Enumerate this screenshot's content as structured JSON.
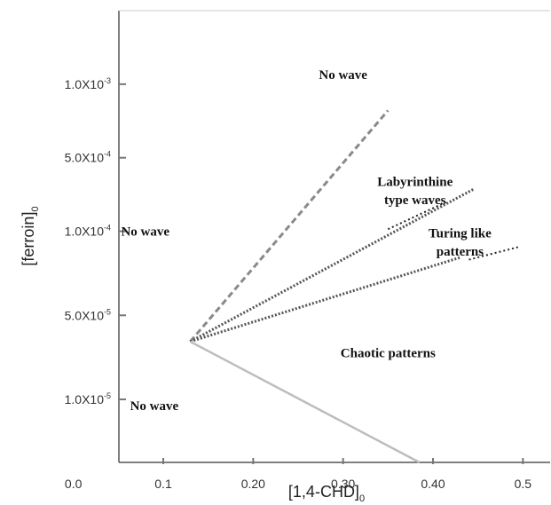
{
  "chart_data": {
    "type": "line",
    "xlabel": {
      "text": "[1,4-CHD]",
      "sub": "0"
    },
    "ylabel": {
      "text": "[ferroin]",
      "sub": "0"
    },
    "xlim": [
      0.0,
      0.52
    ],
    "x_ticks": [
      {
        "value": 0.0,
        "label": "0.0"
      },
      {
        "value": 0.1,
        "label": "0.1"
      },
      {
        "value": 0.2,
        "label": "0.20"
      },
      {
        "value": 0.3,
        "label": "0.30"
      },
      {
        "value": 0.4,
        "label": "0.40"
      },
      {
        "value": 0.5,
        "label": "0.5"
      }
    ],
    "y_ticks": [
      {
        "level": 6.3,
        "label": "1.0X10",
        "exp": "-3"
      },
      {
        "level": 5.6,
        "label": "5.0X10",
        "exp": "-4"
      },
      {
        "level": 4.9,
        "label": "1.0X10",
        "exp": "-4"
      },
      {
        "level": 4.1,
        "label": "5.0X10",
        "exp": "-5"
      },
      {
        "level": 3.3,
        "label": "1.0X10",
        "exp": "-5"
      }
    ],
    "ylim": [
      2.7,
      7.0
    ],
    "series": [
      {
        "style": "dashed",
        "color": "#8a8a8a",
        "points": [
          [
            0.13,
            3.85
          ],
          [
            0.35,
            6.05
          ]
        ]
      },
      {
        "style": "dotted",
        "color": "#555555",
        "points": [
          [
            0.13,
            3.85
          ],
          [
            0.445,
            5.3
          ]
        ],
        "dotted_tail": [
          [
            0.35,
            4.92
          ],
          [
            0.415,
            5.18
          ]
        ]
      },
      {
        "style": "dotted",
        "color": "#555555",
        "points": [
          [
            0.13,
            3.85
          ],
          [
            0.43,
            4.65
          ]
        ],
        "dotted_tail": [
          [
            0.44,
            4.63
          ],
          [
            0.495,
            4.75
          ]
        ]
      },
      {
        "style": "solid",
        "color": "#bdbdbd",
        "points": [
          [
            0.13,
            3.85
          ],
          [
            0.385,
            2.7
          ]
        ]
      }
    ],
    "annotations": [
      {
        "text": "No wave",
        "x": 0.3,
        "y": 6.35
      },
      {
        "text": "Labyrinthine",
        "x": 0.38,
        "y": 5.33
      },
      {
        "text": "type waves",
        "x": 0.38,
        "y": 5.16
      },
      {
        "text": "Turing like",
        "x": 0.43,
        "y": 4.84
      },
      {
        "text": "patterns",
        "x": 0.43,
        "y": 4.67
      },
      {
        "text": "No wave",
        "x": 0.08,
        "y": 4.86
      },
      {
        "text": "Chaotic patterns",
        "x": 0.35,
        "y": 3.7
      },
      {
        "text": "No wave",
        "x": 0.09,
        "y": 3.2
      }
    ],
    "grid": false
  }
}
